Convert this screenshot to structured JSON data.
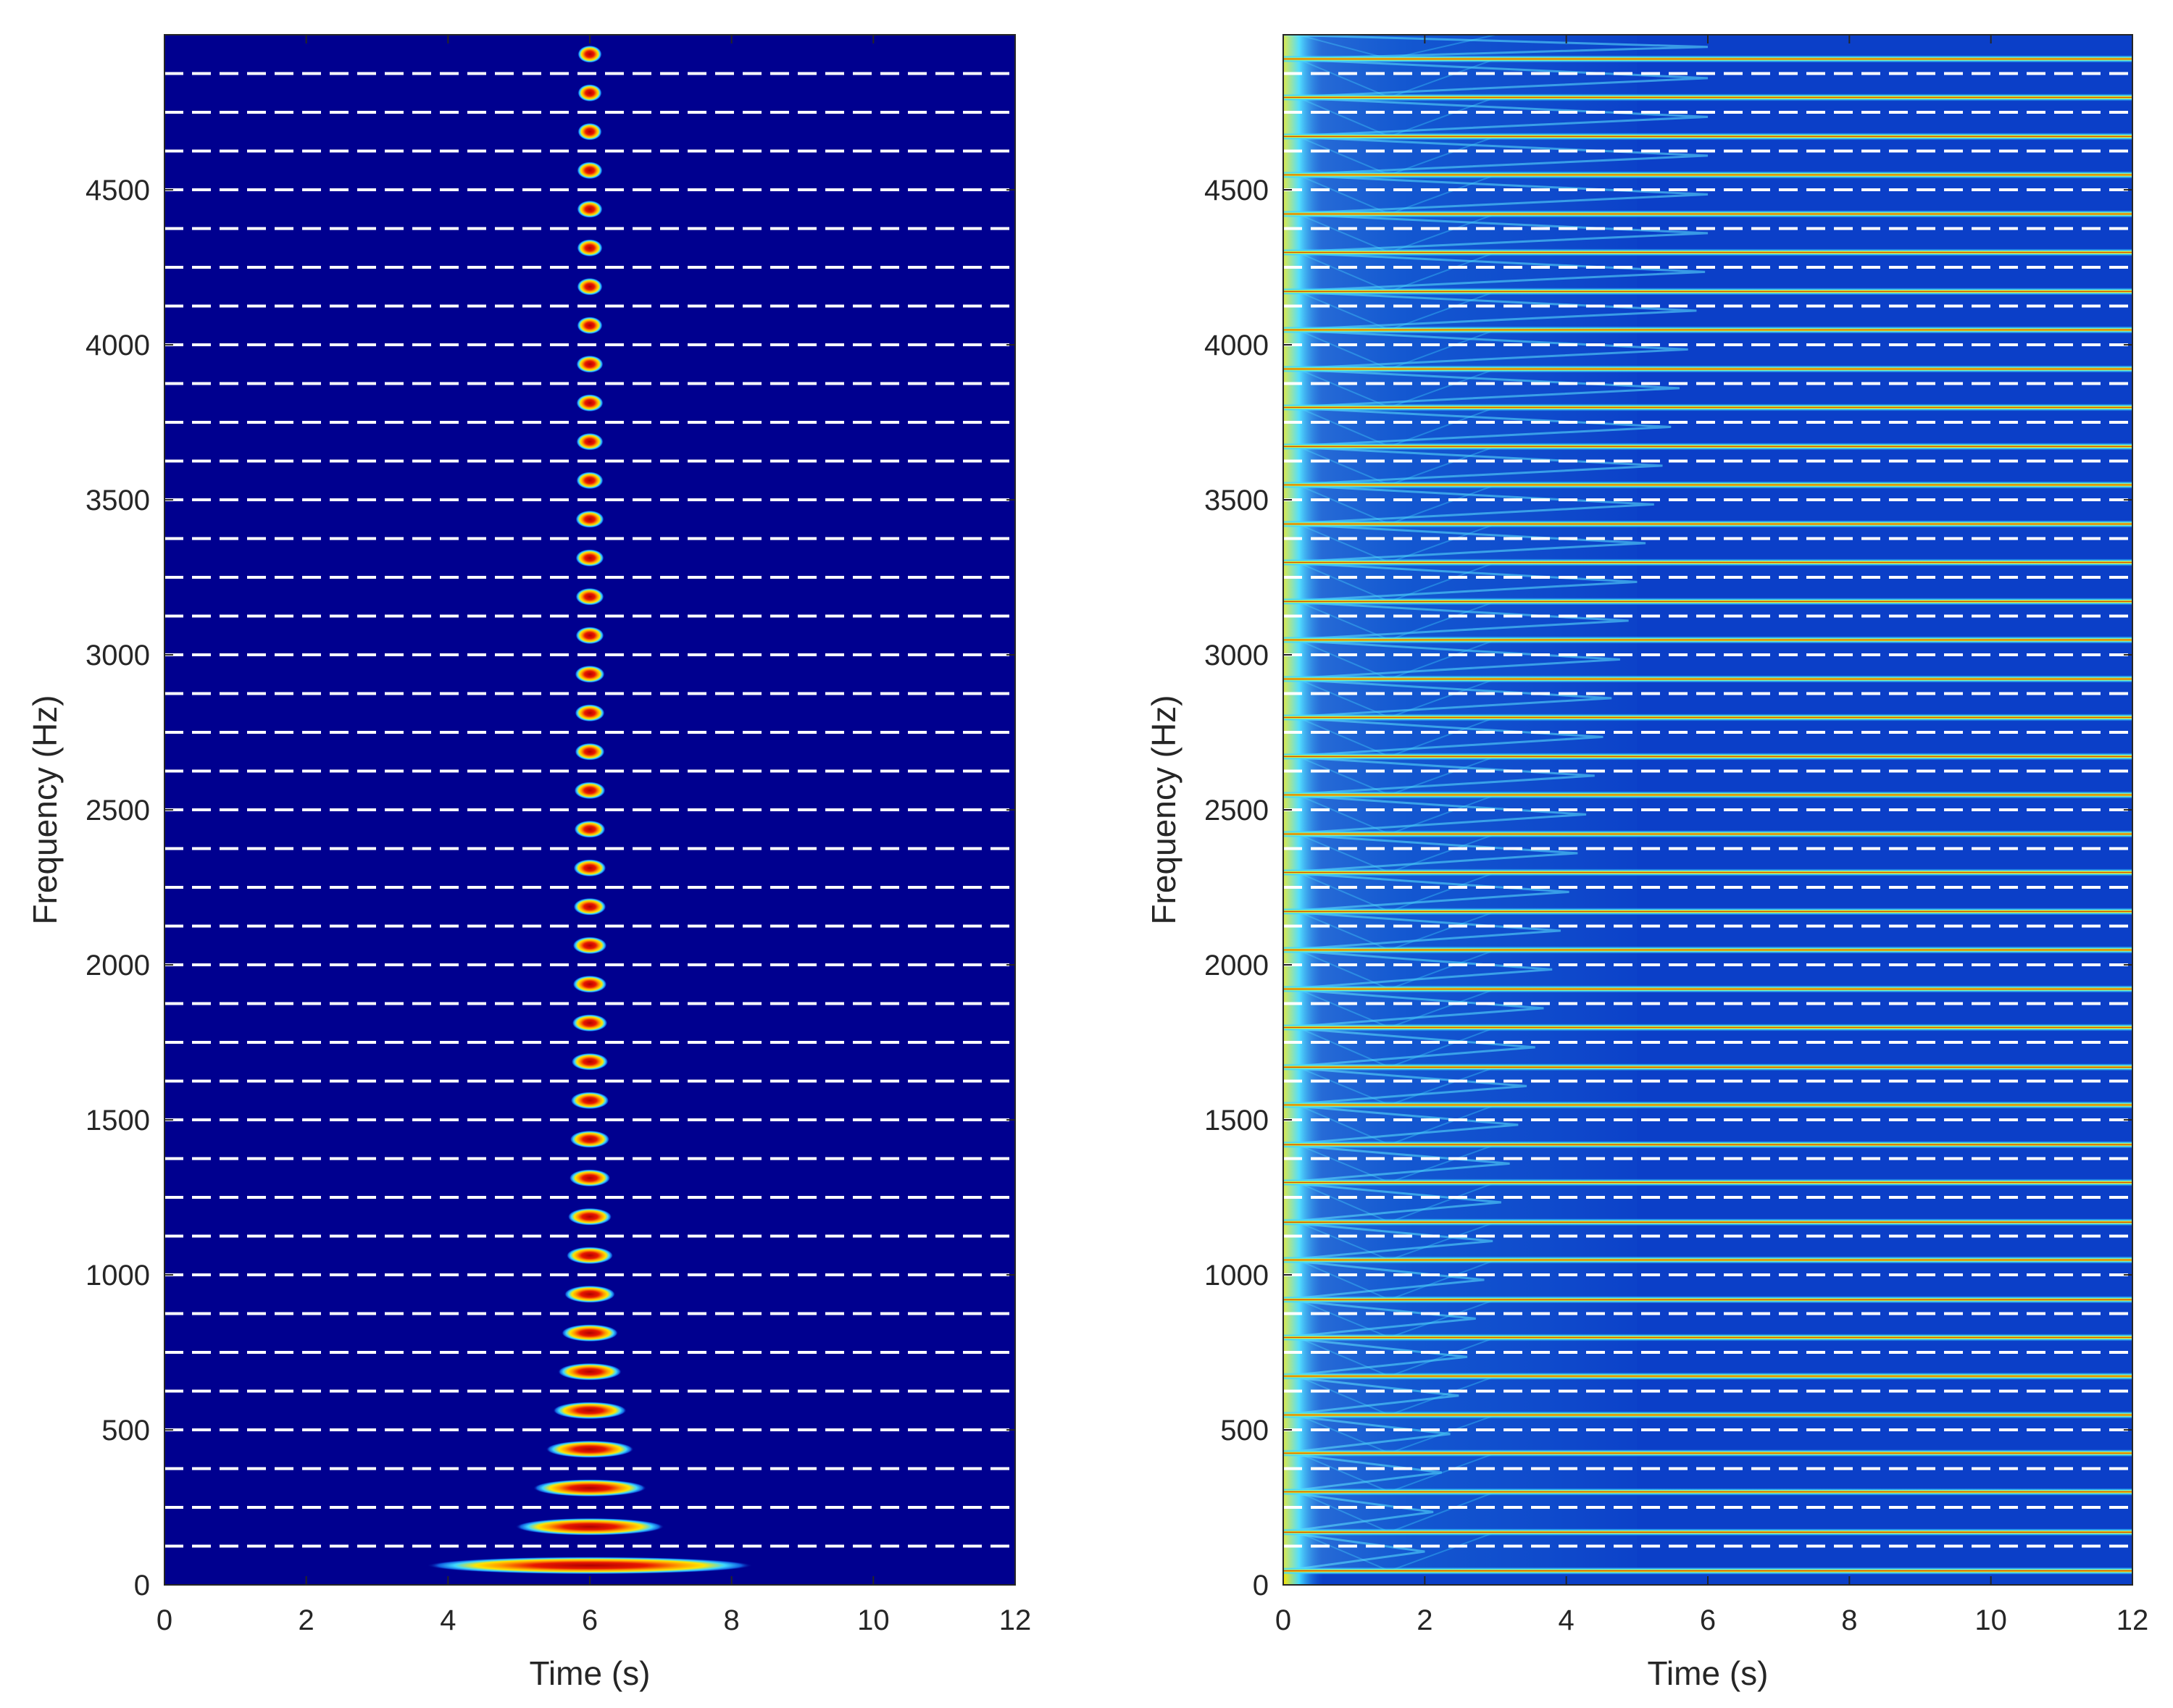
{
  "figure": {
    "panels": [
      "left",
      "right"
    ]
  },
  "colors": {
    "background_low": "#00008f",
    "mid_blue": "#0f5fe0",
    "cyan": "#3fd8ff",
    "yellow": "#ffe600",
    "red": "#b00000",
    "dashed_line": "#ffffff",
    "axis": "#262626"
  },
  "chart_data": [
    {
      "type": "heatmap",
      "title": "",
      "xlabel": "Time (s)",
      "ylabel": "Frequency (Hz)",
      "xlim": [
        0,
        12
      ],
      "ylim": [
        0,
        5000
      ],
      "xticks": [
        0,
        2,
        4,
        6,
        8,
        10,
        12
      ],
      "yticks": [
        0,
        500,
        1000,
        1500,
        2000,
        2500,
        3000,
        3500,
        4000,
        4500
      ],
      "grid": false,
      "colormap": "jet",
      "description_series": {
        "partials_center_time_s": 6,
        "partial_frequencies_hz": [
          62.5,
          187.5,
          312.5,
          437.5,
          562.5,
          687.5,
          812.5,
          937.5,
          1062.5,
          1187.5,
          1312.5,
          1437.5,
          1562.5,
          1687.5,
          1812.5,
          1937.5,
          2062.5,
          2187.5,
          2312.5,
          2437.5,
          2562.5,
          2687.5,
          2812.5,
          2937.5,
          3062.5,
          3187.5,
          3312.5,
          3437.5,
          3562.5,
          3687.5,
          3812.5,
          3937.5,
          4062.5,
          4187.5,
          4312.5,
          4437.5,
          4562.5,
          4687.5,
          4812.5,
          4937.5
        ],
        "partial_half_width_s": [
          2.3,
          1.05,
          0.8,
          0.62,
          0.52,
          0.45,
          0.4,
          0.36,
          0.33,
          0.31,
          0.29,
          0.28,
          0.27,
          0.26,
          0.25,
          0.24,
          0.24,
          0.23,
          0.23,
          0.22,
          0.22,
          0.21,
          0.21,
          0.21,
          0.2,
          0.2,
          0.2,
          0.2,
          0.19,
          0.19,
          0.19,
          0.19,
          0.18,
          0.18,
          0.18,
          0.18,
          0.18,
          0.17,
          0.17,
          0.17
        ]
      },
      "dashed_lines_hz": [
        125,
        250,
        375,
        500,
        625,
        750,
        875,
        1000,
        1125,
        1250,
        1375,
        1500,
        1625,
        1750,
        1875,
        2000,
        2125,
        2250,
        2375,
        2500,
        2625,
        2750,
        2875,
        3000,
        3125,
        3250,
        3375,
        3500,
        3625,
        3750,
        3875,
        4000,
        4125,
        4250,
        4375,
        4500,
        4625,
        4750,
        4875
      ]
    },
    {
      "type": "heatmap",
      "title": "",
      "xlabel": "Time (s)",
      "ylabel": "Frequency (Hz)",
      "xlim": [
        0,
        12
      ],
      "ylim": [
        0,
        5000
      ],
      "xticks": [
        0,
        2,
        4,
        6,
        8,
        10,
        12
      ],
      "yticks": [
        0,
        500,
        1000,
        1500,
        2000,
        2500,
        3000,
        3500,
        4000,
        4500
      ],
      "grid": false,
      "colormap": "jet",
      "description_series": {
        "resonance_frequencies_hz": [
          45,
          170,
          300,
          425,
          548,
          673,
          798,
          920,
          1048,
          1170,
          1298,
          1420,
          1548,
          1670,
          1798,
          1922,
          2048,
          2172,
          2298,
          2422,
          2548,
          2672,
          2798,
          2922,
          3048,
          3172,
          3298,
          3422,
          3548,
          3672,
          3798,
          3922,
          4048,
          4172,
          4298,
          4422,
          4548,
          4672,
          4798,
          4922
        ]
      },
      "dashed_lines_hz": [
        125,
        250,
        375,
        500,
        625,
        750,
        875,
        1000,
        1125,
        1250,
        1375,
        1500,
        1625,
        1750,
        1875,
        2000,
        2125,
        2250,
        2375,
        2500,
        2625,
        2750,
        2875,
        3000,
        3125,
        3250,
        3375,
        3500,
        3625,
        3750,
        3875,
        4000,
        4125,
        4250,
        4375,
        4500,
        4625,
        4750,
        4875
      ]
    }
  ]
}
